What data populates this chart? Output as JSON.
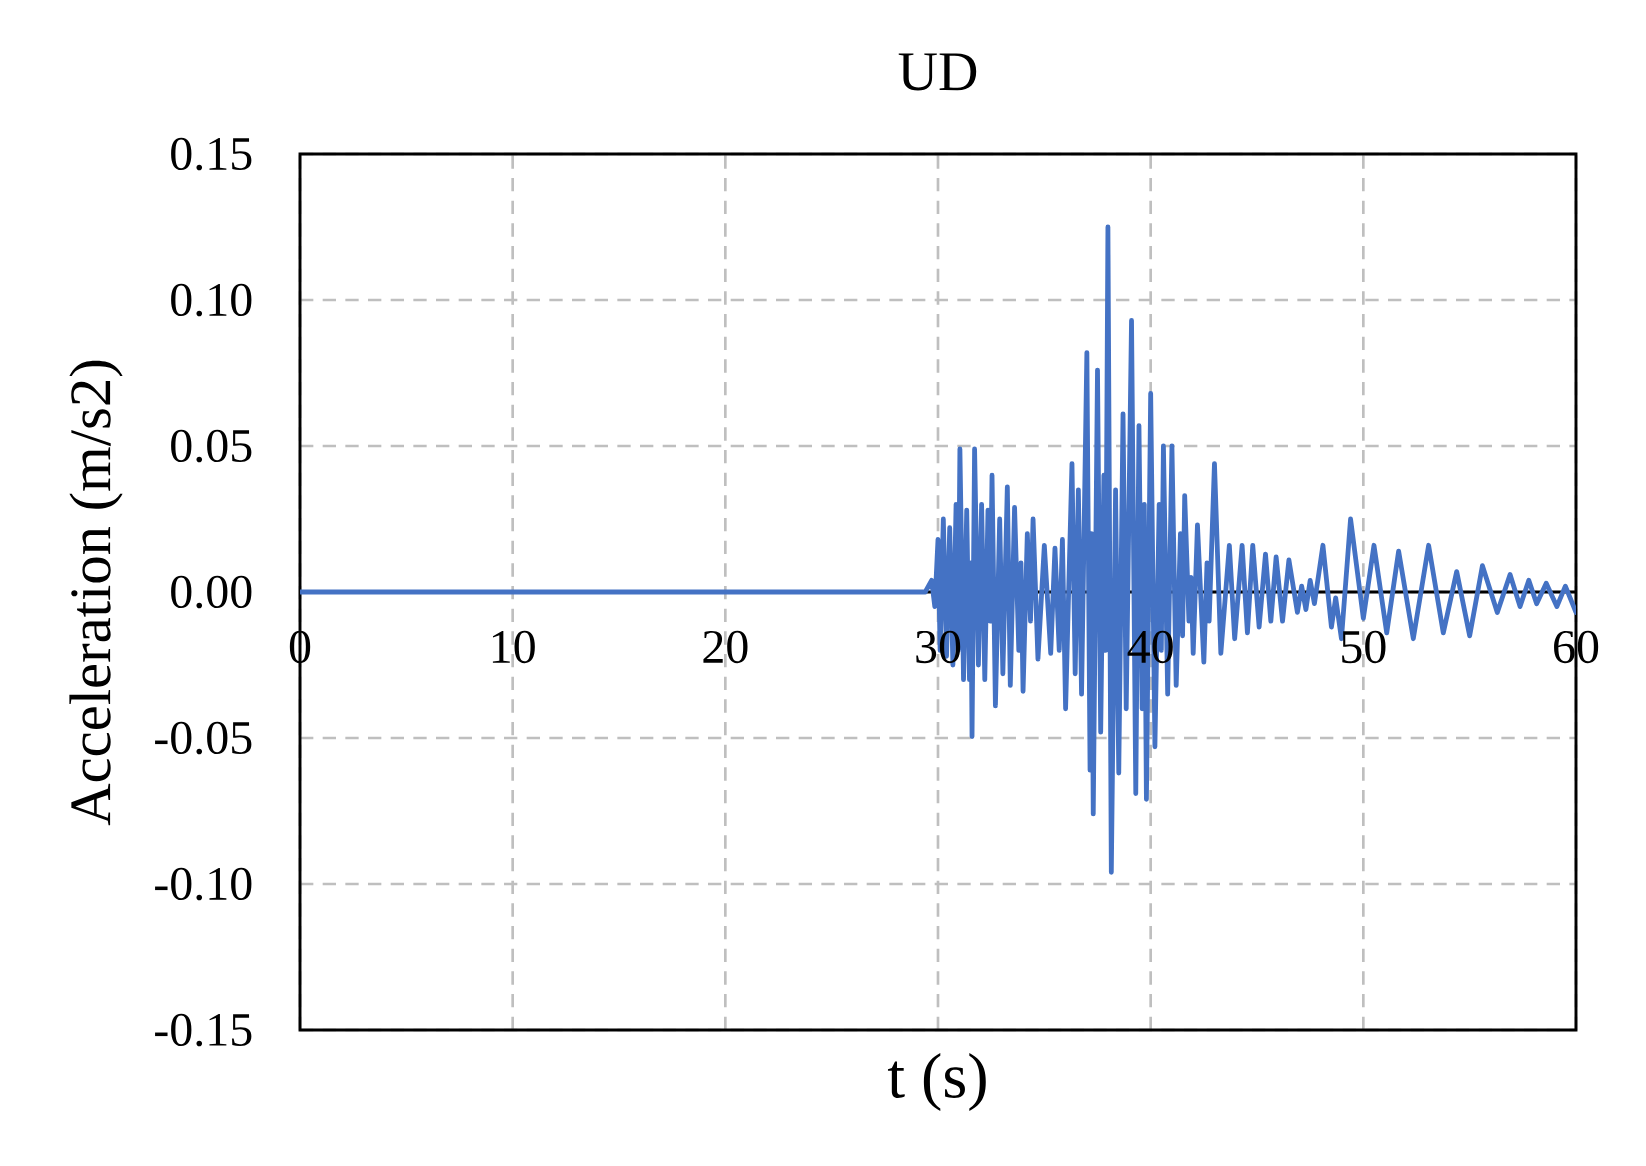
{
  "chart_data": {
    "type": "line",
    "title": "UD",
    "xlabel": "t (s)",
    "ylabel": "Acceleration (m/s2)",
    "x": [
      0,
      10,
      20,
      29.4,
      29.7,
      29.85,
      30.0,
      30.1,
      30.25,
      30.4,
      30.55,
      30.7,
      30.85,
      30.95,
      31.03,
      31.2,
      31.35,
      31.48,
      31.54,
      31.6,
      31.72,
      31.9,
      32.05,
      32.2,
      32.35,
      32.45,
      32.54,
      32.7,
      32.9,
      33.05,
      33.26,
      33.4,
      33.6,
      33.8,
      33.9,
      34.0,
      34.2,
      34.35,
      34.47,
      34.7,
      35.0,
      35.3,
      35.5,
      35.7,
      35.85,
      36.0,
      36.3,
      36.45,
      36.6,
      36.75,
      37.0,
      37.15,
      37.22,
      37.3,
      37.5,
      37.65,
      37.8,
      37.88,
      37.99,
      38.15,
      38.35,
      38.5,
      38.7,
      38.85,
      39.1,
      39.3,
      39.45,
      39.6,
      39.7,
      39.8,
      40.0,
      40.2,
      40.4,
      40.5,
      40.6,
      40.8,
      41.0,
      41.2,
      41.4,
      41.5,
      41.6,
      41.8,
      41.9,
      42.0,
      42.2,
      42.5,
      42.65,
      42.75,
      43.0,
      43.3,
      43.7,
      43.95,
      44.3,
      44.55,
      44.8,
      45.1,
      45.4,
      45.65,
      45.9,
      46.2,
      46.5,
      46.9,
      47.1,
      47.3,
      47.5,
      47.7,
      48.1,
      48.5,
      48.7,
      48.97,
      49.4,
      50.0,
      50.5,
      51.1,
      51.66,
      52.35,
      53.07,
      53.76,
      54.39,
      55.0,
      55.6,
      56.3,
      56.9,
      57.37,
      57.78,
      58.15,
      58.6,
      59.1,
      59.5,
      60
    ],
    "series": [
      {
        "color": "#4472c4",
        "values": [
          0,
          0,
          0,
          0,
          0.004,
          -0.005,
          0.018,
          -0.02,
          0.025,
          -0.022,
          0.022,
          -0.025,
          0.03,
          -0.02,
          0.049,
          -0.03,
          0.028,
          -0.03,
          0.01,
          -0.0495,
          0.049,
          -0.025,
          0.03,
          -0.03,
          0.028,
          -0.01,
          0.04,
          -0.039,
          0.025,
          -0.028,
          0.036,
          -0.032,
          0.029,
          -0.02,
          0.01,
          -0.034,
          0.02,
          -0.01,
          0.025,
          -0.023,
          0.016,
          -0.021,
          0.015,
          -0.02,
          0.018,
          -0.04,
          0.044,
          -0.028,
          0.035,
          -0.035,
          0.082,
          -0.061,
          0.02,
          -0.076,
          0.076,
          -0.048,
          0.04,
          -0.02,
          0.125,
          -0.096,
          0.035,
          -0.062,
          0.061,
          -0.04,
          0.093,
          -0.069,
          0.057,
          -0.04,
          0.03,
          -0.071,
          0.068,
          -0.053,
          0.03,
          -0.02,
          0.05,
          -0.035,
          0.05,
          -0.032,
          0.02,
          -0.015,
          0.033,
          -0.01,
          0.005,
          -0.021,
          0.023,
          -0.024,
          0.01,
          -0.01,
          0.044,
          -0.021,
          0.016,
          -0.016,
          0.016,
          -0.014,
          0.016,
          -0.012,
          0.013,
          -0.01,
          0.012,
          -0.01,
          0.011,
          -0.007,
          0.002,
          -0.006,
          0.004,
          -0.004,
          0.016,
          -0.012,
          -0.002,
          -0.016,
          0.025,
          -0.009,
          0.016,
          -0.014,
          0.014,
          -0.016,
          0.016,
          -0.014,
          0.007,
          -0.015,
          0.009,
          -0.007,
          0.006,
          -0.005,
          0.004,
          -0.004,
          0.003,
          -0.005,
          0.002,
          -0.007
        ]
      }
    ],
    "xlim": [
      0,
      60
    ],
    "ylim": [
      -0.15,
      0.15
    ],
    "xticks": [
      0,
      10,
      20,
      30,
      40,
      50,
      60
    ],
    "yticks": [
      -0.15,
      {
        "value": -0.1,
        "label": "-0.10"
      },
      -0.05,
      {
        "value": 0,
        "label": "0.00"
      },
      0.05,
      {
        "value": 0.1,
        "label": "0.10"
      },
      0.15
    ],
    "grid": true,
    "marker": "none",
    "line_style": "solid"
  }
}
